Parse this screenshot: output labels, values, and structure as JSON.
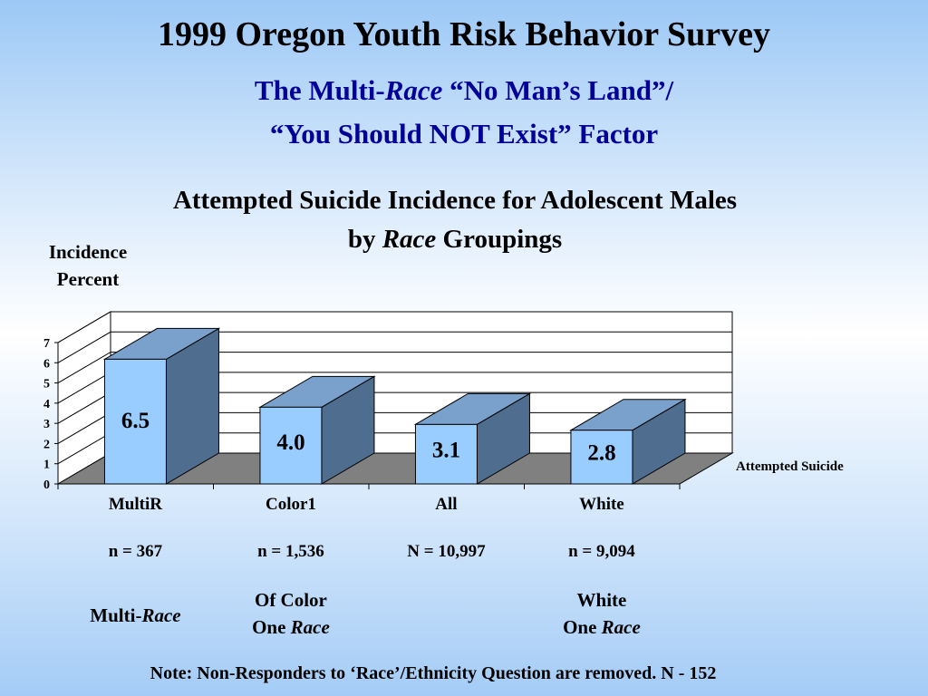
{
  "slide": {
    "title": "1999 Oregon Youth Risk Behavior Survey",
    "subtitle_line1_a": "The Multi-",
    "subtitle_line1_b": "Race",
    "subtitle_line1_c": " “No Man’s Land”/",
    "subtitle_line2": "“You Should NOT Exist” Factor",
    "note": "Note: Non-Responders to ‘Race’/Ethnicity Question are removed. N - 152"
  },
  "chart_data": {
    "type": "bar",
    "title_line1": "Attempted Suicide Incidence for Adolescent Males",
    "title_line2_a": "by ",
    "title_line2_b": "Race",
    "title_line2_c": " Groupings",
    "ylabel_line1": "Incidence",
    "ylabel_line2": "Percent",
    "ylim": [
      0,
      7
    ],
    "yticks": [
      "0",
      "1",
      "2",
      "3",
      "4",
      "5",
      "6",
      "7"
    ],
    "grid": true,
    "legend_position": "right",
    "categories": [
      "MultiR",
      "Color1",
      "All",
      "White"
    ],
    "series": [
      {
        "name": "Attempted Suicide",
        "values": [
          6.5,
          4.0,
          3.1,
          2.8
        ],
        "labels": [
          "6.5",
          "4.0",
          "3.1",
          "2.8"
        ]
      }
    ],
    "sample_sizes": [
      "n = 367",
      "n = 1,536",
      "N = 10,997",
      "n = 9,094"
    ],
    "groups": [
      {
        "line1_a": "Multi-",
        "line1_b": "Race",
        "line2_a": "",
        "line2_b": ""
      },
      {
        "line1_a": "Of Color",
        "line1_b": "",
        "line2_a": "One ",
        "line2_b": "Race"
      },
      {
        "line1_a": "",
        "line1_b": "",
        "line2_a": "",
        "line2_b": ""
      },
      {
        "line1_a": "White",
        "line1_b": "",
        "line2_a": "One ",
        "line2_b": "Race"
      }
    ],
    "colors": {
      "bar_front": "#99ccff",
      "bar_top": "#7aa0cc",
      "bar_side": "#4f6d8f",
      "floor": "#808080"
    }
  }
}
